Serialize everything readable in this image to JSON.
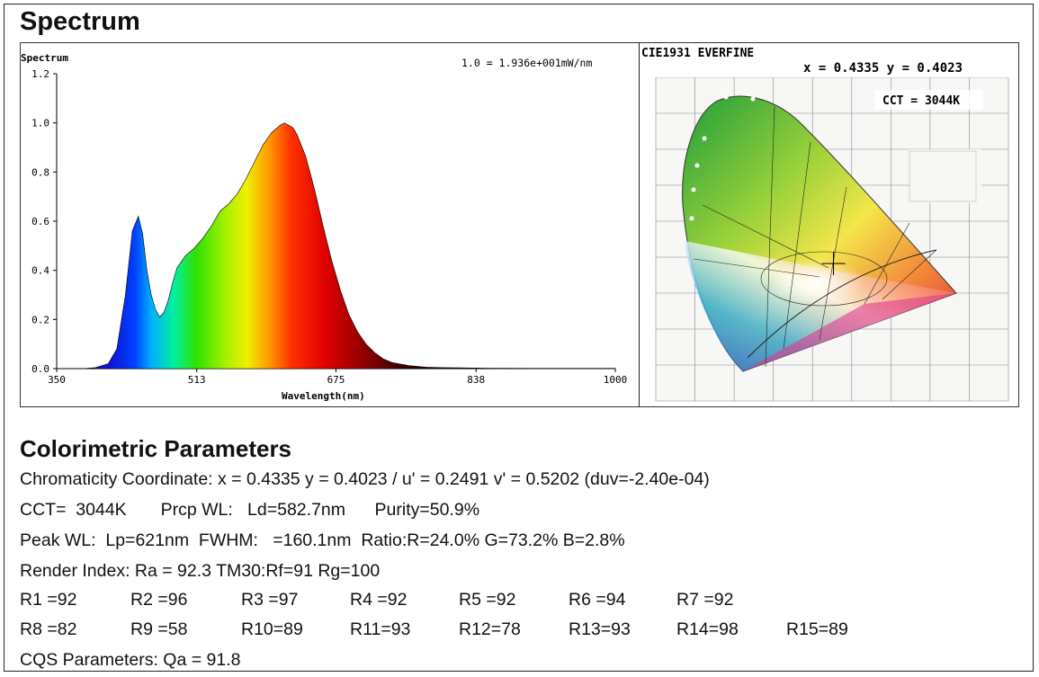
{
  "header": {
    "title": "Spectrum"
  },
  "chart_data": [
    {
      "type": "area",
      "title": "Spectrum",
      "annotation": "1.0 = 1.936e+001mW/nm",
      "xlabel": "Wavelength(nm)",
      "ylabel": "",
      "xlim": [
        350,
        1000
      ],
      "ylim": [
        0,
        1.2
      ],
      "x_ticks": [
        "350",
        "513",
        "675",
        "838",
        "1000"
      ],
      "y_ticks": [
        "0.0",
        "0.2",
        "0.4",
        "0.6",
        "0.8",
        "1.0",
        "1.2"
      ],
      "fill": "visible spectrum gradient",
      "x": [
        380,
        395,
        410,
        420,
        430,
        438,
        445,
        450,
        455,
        460,
        465,
        470,
        475,
        480,
        485,
        490,
        500,
        510,
        520,
        530,
        540,
        550,
        560,
        570,
        580,
        590,
        600,
        610,
        615,
        620,
        625,
        630,
        640,
        650,
        660,
        670,
        680,
        690,
        700,
        710,
        720,
        730,
        740,
        760,
        780,
        800,
        850,
        900,
        950,
        1000
      ],
      "values": [
        0,
        0.004,
        0.02,
        0.08,
        0.3,
        0.56,
        0.62,
        0.55,
        0.4,
        0.3,
        0.24,
        0.21,
        0.23,
        0.28,
        0.35,
        0.41,
        0.46,
        0.49,
        0.53,
        0.58,
        0.64,
        0.67,
        0.71,
        0.77,
        0.84,
        0.91,
        0.96,
        0.99,
        1.0,
        0.99,
        0.98,
        0.95,
        0.86,
        0.73,
        0.58,
        0.44,
        0.32,
        0.22,
        0.15,
        0.1,
        0.065,
        0.04,
        0.025,
        0.012,
        0.006,
        0.004,
        0.002,
        0.001,
        0.001,
        0.001
      ]
    },
    {
      "type": "scatter",
      "title": "CIE1931 EVERFINE",
      "point": {
        "x": 0.4335,
        "y": 0.4023
      },
      "xy_text": "x = 0.4335  y = 0.4023",
      "cct_text": "CCT = 3044K"
    }
  ],
  "params": {
    "title": "Colorimetric Parameters",
    "chroma": "Chromaticity Coordinate: x = 0.4335 y = 0.4023 / u' = 0.2491 v' = 0.5202 (duv=-2.40e-04)",
    "cct": "CCT=  3044K       Prcp WL:   Ld=582.7nm      Purity=50.9%",
    "peak": "Peak WL:  Lp=621nm  FWHM:   =160.1nm  Ratio:R=24.0% G=73.2% B=2.8%",
    "render": "Render Index: Ra = 92.3 TM30:Rf=91 Rg=100",
    "r_row1": [
      "R1 =92",
      "R2 =96",
      "R3 =97",
      "R4 =92",
      "R5 =92",
      "R6 =94",
      "R7 =92"
    ],
    "r_row2": [
      "R8 =82",
      "R9 =58",
      "R10=89",
      "R11=93",
      "R12=78",
      "R13=93",
      "R14=98",
      "R15=89"
    ],
    "cqs": "CQS Parameters: Qa = 91.8"
  }
}
